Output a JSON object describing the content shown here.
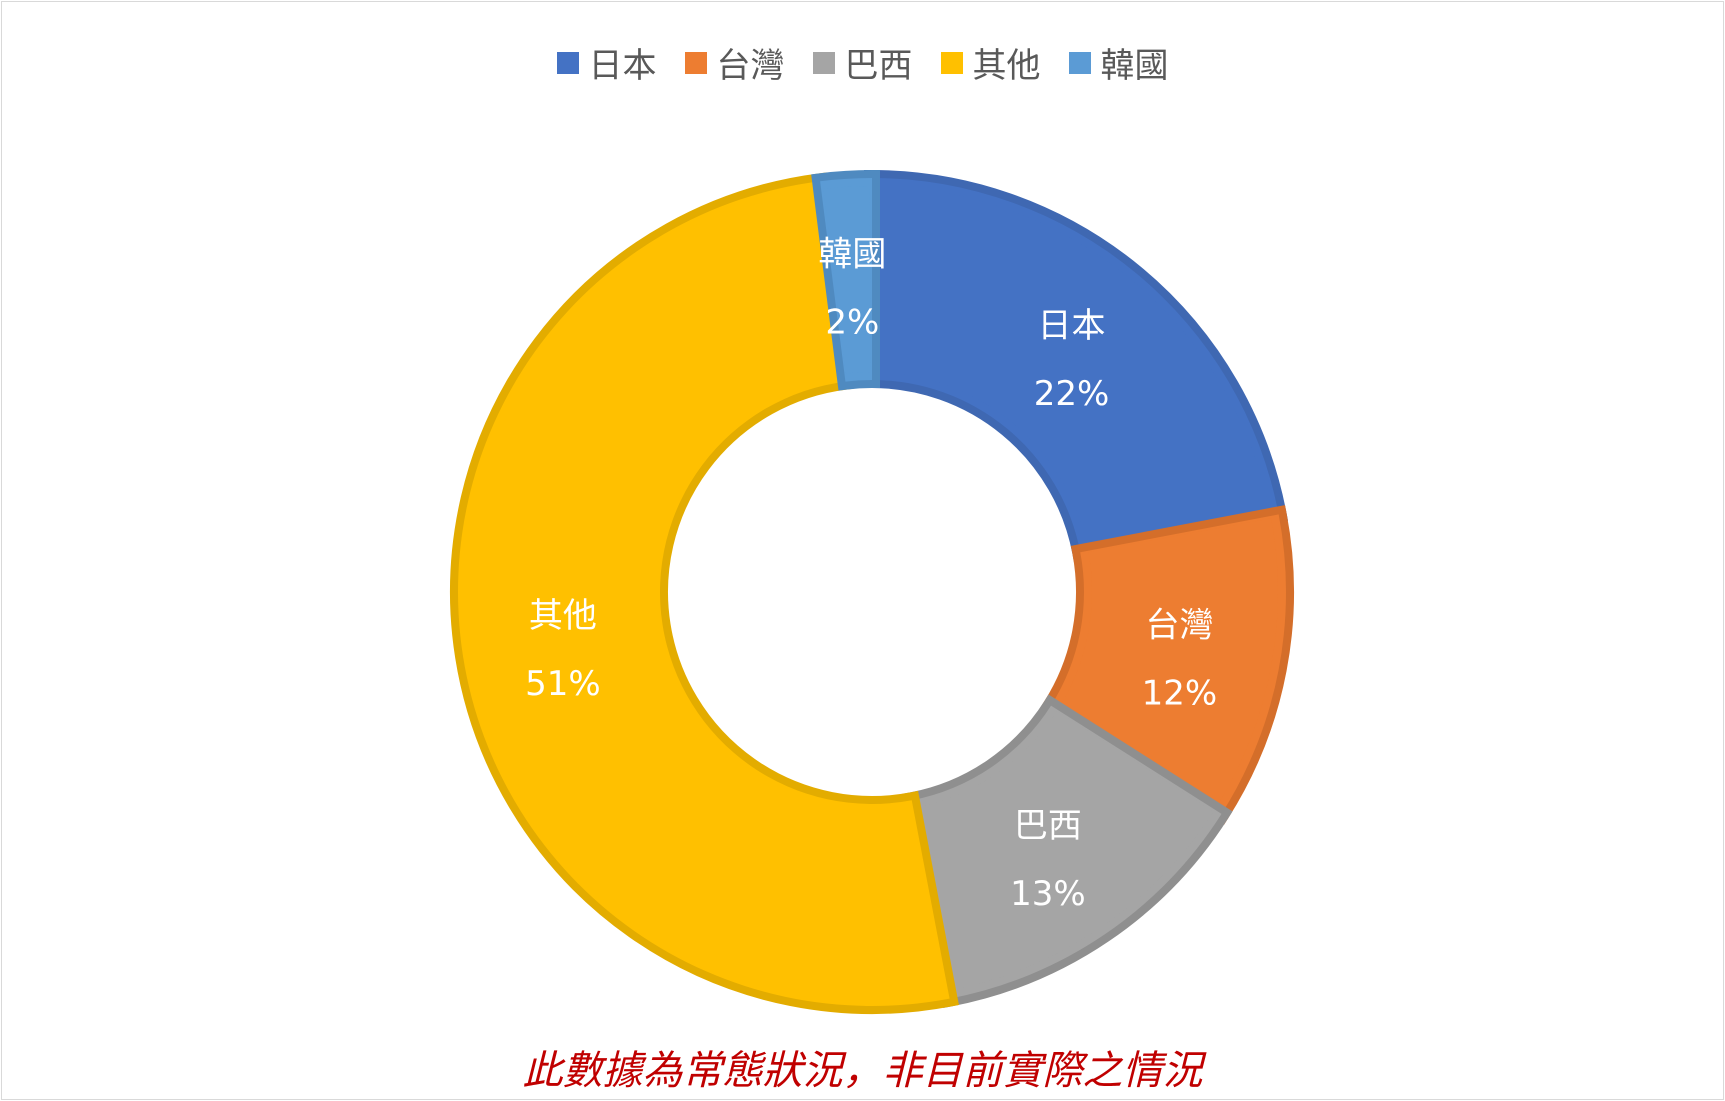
{
  "chart_data": {
    "type": "pie",
    "variant": "donut",
    "legend_position": "top",
    "categories": [
      "日本",
      "台灣",
      "巴西",
      "其他",
      "韓國"
    ],
    "values": [
      22,
      12,
      13,
      51,
      2
    ],
    "value_labels": [
      "22%",
      "12%",
      "13%",
      "51%",
      "2%"
    ],
    "colors": [
      "#4472C4",
      "#ED7D31",
      "#A5A5A5",
      "#FFC000",
      "#5B9BD5"
    ],
    "edge_colors": [
      "#3F68B2",
      "#D46E2A",
      "#8F8F8F",
      "#E3AC00",
      "#4F8AC0"
    ]
  },
  "note": "此數據為常態狀況，非目前實際之情況"
}
